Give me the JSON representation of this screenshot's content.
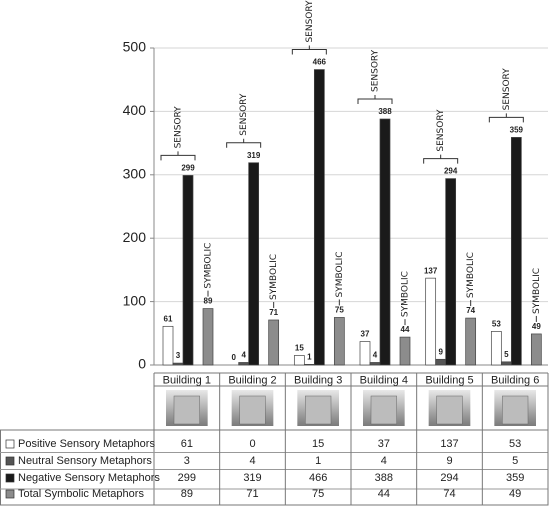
{
  "chart_data": {
    "type": "bar",
    "categories": [
      "Building 1",
      "Building 2",
      "Building 3",
      "Building 4",
      "Building 5",
      "Building 6"
    ],
    "series": [
      {
        "name": "Positive Sensory Metaphors",
        "color": "#ffffff",
        "values": [
          61,
          0,
          15,
          37,
          137,
          53
        ]
      },
      {
        "name": "Neutral Sensory Metaphors",
        "color": "#555555",
        "values": [
          3,
          4,
          1,
          4,
          9,
          5
        ]
      },
      {
        "name": "Negative Sensory Metaphors",
        "color": "#1a1a1a",
        "values": [
          299,
          319,
          466,
          388,
          294,
          359
        ]
      },
      {
        "name": "Total Symbolic Metaphors",
        "color": "#8c8c8c",
        "values": [
          89,
          71,
          75,
          44,
          74,
          49
        ]
      }
    ],
    "sensory_labels": [
      "SENSORY",
      "SENSORY",
      "SENSORY",
      "SENSORY",
      "SENSORY",
      "SENSORY"
    ],
    "symbolic_labels": [
      "SYMBOLIC",
      "SYMBOLIC",
      "SYMBOLIC",
      "SYMBOLIC",
      "SYMBOLIC",
      "SYMBOLIC"
    ],
    "ylim": [
      0,
      500
    ],
    "yticks": [
      0,
      100,
      200,
      300,
      400,
      500
    ],
    "grid": true
  }
}
